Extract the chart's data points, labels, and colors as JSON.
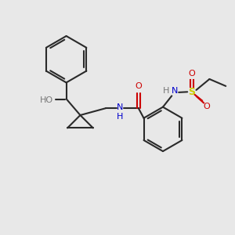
{
  "bg_color": "#e8e8e8",
  "bond_color": "#2a2a2a",
  "O_color": "#cc0000",
  "N_color": "#0000cc",
  "S_color": "#cccc00",
  "H_color": "#777777",
  "figsize": [
    3.0,
    3.0
  ],
  "dpi": 100,
  "lw": 1.5,
  "fs": 8.0,
  "xlim": [
    0,
    10
  ],
  "ylim": [
    0,
    10
  ]
}
